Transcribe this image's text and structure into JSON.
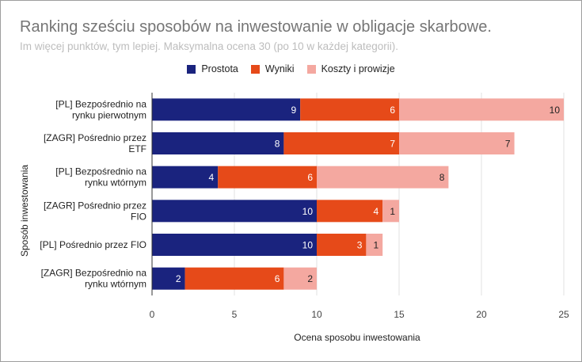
{
  "chart_data": {
    "type": "bar",
    "orientation": "horizontal",
    "stacked": true,
    "title": "Ranking sześciu sposobów na inwestowanie w obligacje skarbowe.",
    "subtitle": "Im więcej punktów, tym lepiej. Maksymalna ocena 30 (po 10 w każdej kategorii).",
    "xlabel": "Ocena sposobu inwestowania",
    "ylabel": "Sposób inwestowania",
    "xlim": [
      0,
      25
    ],
    "xticks": [
      0,
      5,
      10,
      15,
      20,
      25
    ],
    "grid": true,
    "legend_position": "top",
    "categories": [
      [
        "[PL] Bezpośrednio na",
        "rynku pierwotnym"
      ],
      [
        "[ZAGR] Pośrednio przez",
        "ETF"
      ],
      [
        "[PL] Bezpośrednio na",
        "rynku wtórnym"
      ],
      [
        "[ZAGR] Pośrednio przez",
        "FIO"
      ],
      [
        "[PL] Pośrednio przez FIO"
      ],
      [
        "[ZAGR] Bezpośrednio na",
        "rynku wtórnym"
      ]
    ],
    "series": [
      {
        "name": "Prostota",
        "color": "#1a237e",
        "label_color": "#ffffff",
        "values": [
          9,
          8,
          4,
          10,
          10,
          2
        ]
      },
      {
        "name": "Wyniki",
        "color": "#e64a19",
        "label_color": "#ffffff",
        "values": [
          6,
          7,
          6,
          4,
          3,
          6
        ]
      },
      {
        "name": "Koszty i prowizje",
        "color": "#f4a8a0",
        "label_color": "#222222",
        "values": [
          10,
          7,
          8,
          1,
          1,
          2
        ]
      }
    ]
  }
}
